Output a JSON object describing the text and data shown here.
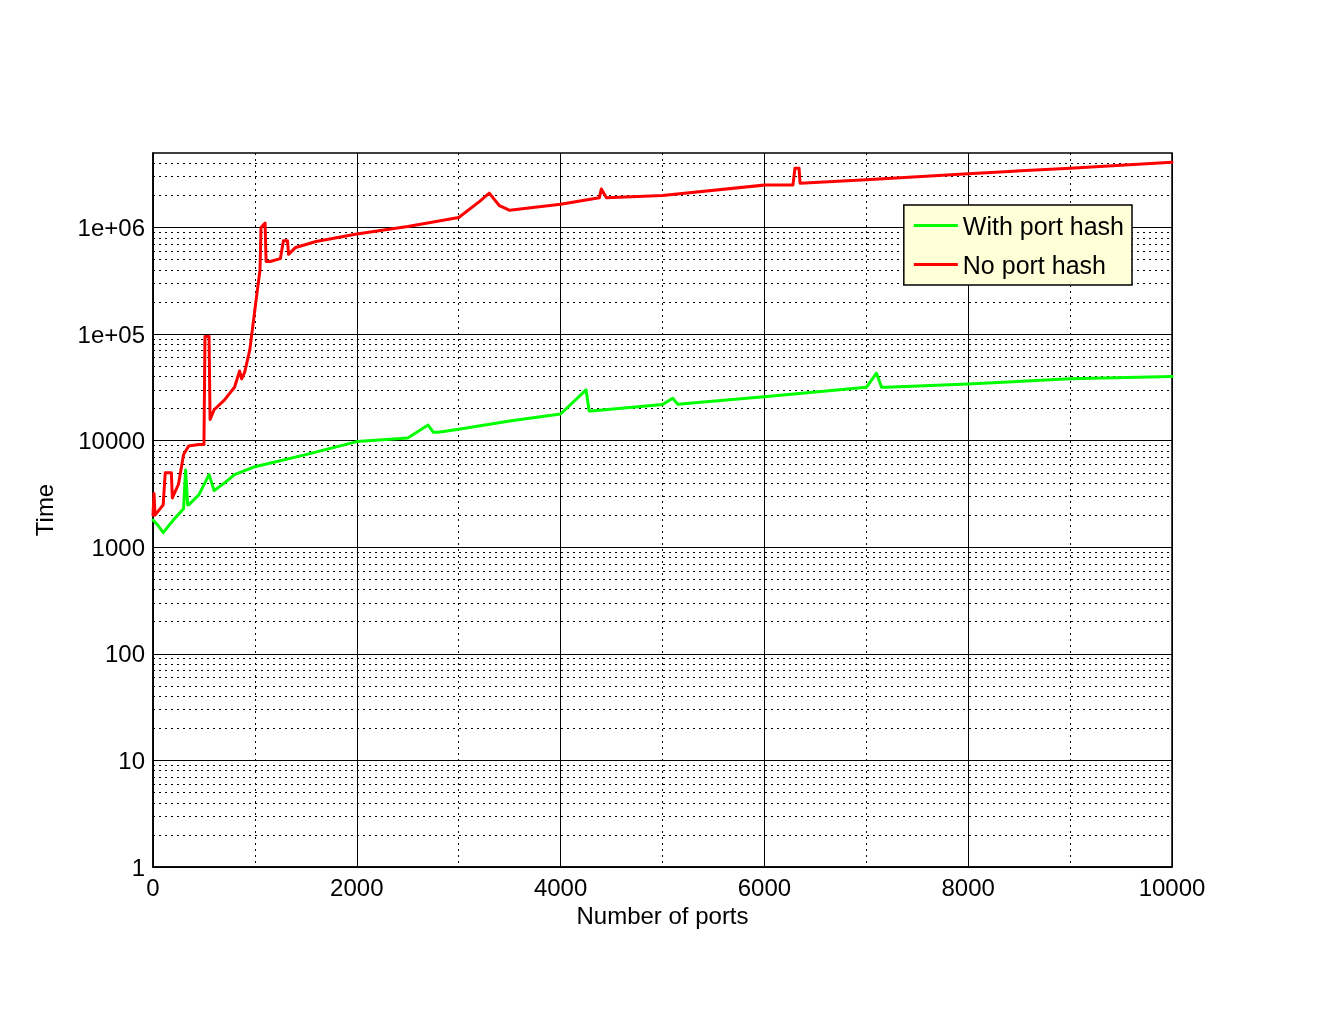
{
  "chart_data": {
    "type": "line",
    "xlabel": "Number of ports",
    "ylabel": "Time",
    "xlim": [
      0,
      10000
    ],
    "xticks": [
      0,
      2000,
      4000,
      6000,
      8000,
      10000
    ],
    "ylim": [
      1,
      5000000
    ],
    "yticks": [
      1,
      10,
      100,
      1000,
      10000,
      {
        "value": 100000,
        "label": "1e+05"
      },
      {
        "value": 1000000,
        "label": "1e+06"
      }
    ],
    "log": "y",
    "grid": true,
    "legend": "top right",
    "marker": "none",
    "line_style": "solid",
    "series": [
      {
        "name": "With port hash",
        "color": "#00ff00",
        "x": [
          0,
          50,
          100,
          200,
          300,
          320,
          340,
          350,
          450,
          550,
          600,
          700,
          800,
          1000,
          1500,
          2000,
          2500,
          2700,
          2750,
          2800,
          3000,
          3500,
          4000,
          4250,
          4280,
          4300,
          5000,
          5100,
          5150,
          6000,
          7000,
          7100,
          7150,
          7200,
          8000,
          9000,
          10000
        ],
        "values": [
          1800,
          1600,
          1370,
          1800,
          2300,
          5300,
          2500,
          2500,
          3100,
          4800,
          3400,
          4000,
          4800,
          5700,
          7400,
          9800,
          10600,
          14000,
          12000,
          12000,
          12800,
          15300,
          17800,
          30000,
          19000,
          19000,
          21800,
          25000,
          22000,
          25800,
          31700,
          43000,
          31700,
          31700,
          34000,
          38000,
          40000
        ]
      },
      {
        "name": "No port hash",
        "color": "#ff0000",
        "x": [
          0,
          10,
          20,
          100,
          120,
          180,
          190,
          250,
          300,
          350,
          450,
          500,
          510,
          550,
          560,
          600,
          700,
          800,
          850,
          870,
          900,
          950,
          1000,
          1050,
          1060,
          1100,
          1110,
          1150,
          1250,
          1280,
          1320,
          1330,
          1400,
          1600,
          2000,
          2500,
          3000,
          3200,
          3300,
          3400,
          3500,
          4000,
          4380,
          4400,
          4450,
          5000,
          6000,
          6280,
          6300,
          6340,
          6350,
          7000,
          8000,
          9000,
          10000
        ],
        "values": [
          2000,
          3200,
          2000,
          2500,
          5000,
          5000,
          2900,
          3900,
          7400,
          8900,
          9200,
          9200,
          95000,
          95000,
          15800,
          19500,
          24000,
          31700,
          45000,
          38000,
          44000,
          71000,
          170000,
          400000,
          1000000,
          1100000,
          480000,
          480000,
          510000,
          750000,
          750000,
          560000,
          650000,
          740000,
          870000,
          1020000,
          1240000,
          1740000,
          2100000,
          1600000,
          1450000,
          1650000,
          1900000,
          2300000,
          1900000,
          2000000,
          2500000,
          2500000,
          3600000,
          3600000,
          2600000,
          2800000,
          3200000,
          3600000,
          4100000
        ]
      }
    ]
  }
}
